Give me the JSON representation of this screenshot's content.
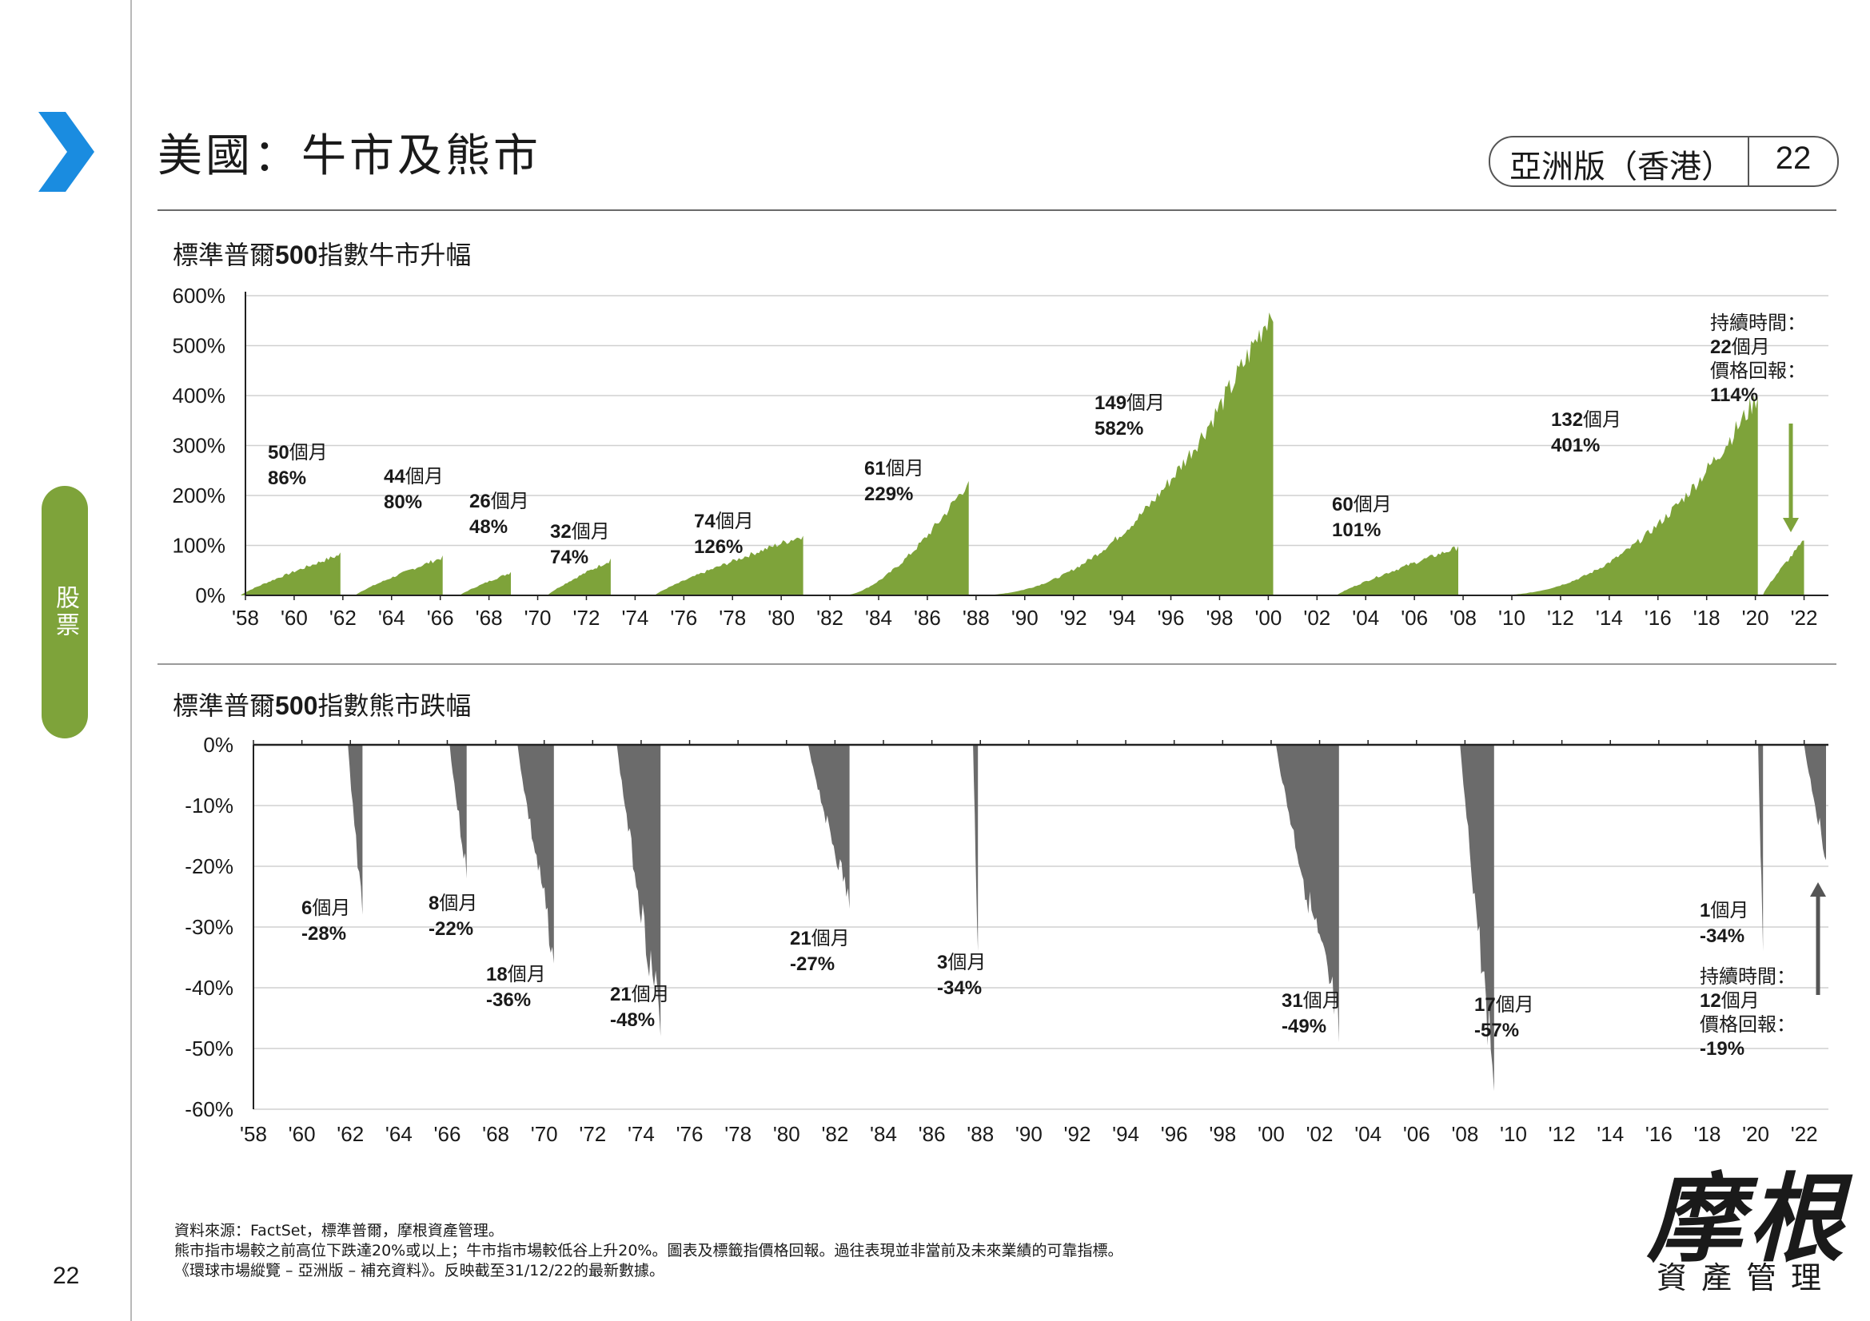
{
  "header": {
    "title": "美國：牛市及熊市",
    "edition": "亞洲版（香港）",
    "page_number": "22"
  },
  "side_tab": {
    "label": "股票"
  },
  "colors": {
    "bull": "#7ea33a",
    "bear": "#6b6b6b",
    "accent_blue": "#1a8ce0",
    "tab": "#7ea33a"
  },
  "bull_chart_title_pre": "標準普爾",
  "bull_chart_title_bold": "500",
  "bull_chart_title_post": "指數牛市升幅",
  "bear_chart_title_pre": "標準普爾",
  "bear_chart_title_bold": "500",
  "bear_chart_title_post": "指數熊市跌幅",
  "chart_data": [
    {
      "type": "area",
      "title": "標準普爾500指數牛市升幅",
      "x_tick_labels": [
        "'58",
        "'60",
        "'62",
        "'64",
        "'66",
        "'68",
        "'70",
        "'72",
        "'74",
        "'76",
        "'78",
        "'80",
        "'82",
        "'84",
        "'86",
        "'88",
        "'90",
        "'92",
        "'94",
        "'96",
        "'98",
        "'00",
        "'02",
        "'04",
        "'06",
        "'08",
        "'10",
        "'12",
        "'14",
        "'16",
        "'18",
        "'20",
        "'22"
      ],
      "xlim": [
        1958,
        2023
      ],
      "y_tick_labels": [
        "600%",
        "500%",
        "400%",
        "300%",
        "200%",
        "100%",
        "0%"
      ],
      "ylim": [
        0,
        600
      ],
      "grid": true,
      "series_color": "#7ea33a",
      "markets": [
        {
          "start": 1957.8,
          "end": 1961.9,
          "months": "50",
          "return": 86,
          "label_months": "50",
          "label_unit": "個月",
          "label_return": "86%"
        },
        {
          "start": 1962.5,
          "end": 1966.1,
          "months": "44",
          "return": 80,
          "label_months": "44",
          "label_unit": "個月",
          "label_return": "80%"
        },
        {
          "start": 1966.8,
          "end": 1968.9,
          "months": "26",
          "return": 48,
          "label_months": "26",
          "label_unit": "個月",
          "label_return": "48%"
        },
        {
          "start": 1970.4,
          "end": 1973.0,
          "months": "32",
          "return": 74,
          "label_months": "32",
          "label_unit": "個月",
          "label_return": "74%"
        },
        {
          "start": 1974.8,
          "end": 1980.9,
          "months": "74",
          "return": 126,
          "label_months": "74",
          "label_unit": "個月",
          "label_return": "126%"
        },
        {
          "start": 1982.6,
          "end": 1987.7,
          "months": "61",
          "return": 229,
          "label_months": "61",
          "label_unit": "個月",
          "label_return": "229%"
        },
        {
          "start": 1987.9,
          "end": 2000.2,
          "months": "149",
          "return": 582,
          "label_months": "149",
          "label_unit": "個月",
          "label_return": "582%"
        },
        {
          "start": 2002.8,
          "end": 2007.8,
          "months": "60",
          "return": 101,
          "label_months": "60",
          "label_unit": "個月",
          "label_return": "101%"
        },
        {
          "start": 2009.2,
          "end": 2020.1,
          "months": "132",
          "return": 401,
          "label_months": "132",
          "label_unit": "個月",
          "label_return": "401%"
        },
        {
          "start": 2020.3,
          "end": 2022.0,
          "months": "22",
          "return": 114,
          "label_months": "22",
          "label_unit": "個月",
          "label_return": "114%"
        }
      ],
      "current_annotation": {
        "line1": "持續時間：",
        "line2_bold": "22",
        "line2_unit": "個月",
        "line3": "價格回報：",
        "line4": "114%"
      }
    },
    {
      "type": "area",
      "title": "標準普爾500指數熊市跌幅",
      "x_tick_labels": [
        "'58",
        "'60",
        "'62",
        "'64",
        "'66",
        "'68",
        "'70",
        "'72",
        "'74",
        "'76",
        "'78",
        "'80",
        "'82",
        "'84",
        "'86",
        "'88",
        "'90",
        "'92",
        "'94",
        "'96",
        "'98",
        "'00",
        "'02",
        "'04",
        "'06",
        "'08",
        "'10",
        "'12",
        "'14",
        "'16",
        "'18",
        "'20",
        "'22"
      ],
      "xlim": [
        1958,
        2023
      ],
      "y_tick_labels": [
        "0%",
        "-10%",
        "-20%",
        "-30%",
        "-40%",
        "-50%",
        "-60%"
      ],
      "ylim": [
        -60,
        0
      ],
      "grid": true,
      "series_color": "#6b6b6b",
      "markets": [
        {
          "start": 1961.9,
          "end": 1962.5,
          "months": "6",
          "return": -28,
          "label_months": "6",
          "label_unit": "個月",
          "label_return": "-28%"
        },
        {
          "start": 1966.1,
          "end": 1966.8,
          "months": "8",
          "return": -22,
          "label_months": "8",
          "label_unit": "個月",
          "label_return": "-22%"
        },
        {
          "start": 1968.9,
          "end": 1970.4,
          "months": "18",
          "return": -36,
          "label_months": "18",
          "label_unit": "個月",
          "label_return": "-36%"
        },
        {
          "start": 1973.0,
          "end": 1974.8,
          "months": "21",
          "return": -48,
          "label_months": "21",
          "label_unit": "個月",
          "label_return": "-48%"
        },
        {
          "start": 1980.9,
          "end": 1982.6,
          "months": "21",
          "return": -27,
          "label_months": "21",
          "label_unit": "個月",
          "label_return": "-27%"
        },
        {
          "start": 1987.7,
          "end": 1987.9,
          "months": "3",
          "return": -34,
          "label_months": "3",
          "label_unit": "個月",
          "label_return": "-34%"
        },
        {
          "start": 2000.2,
          "end": 2002.8,
          "months": "31",
          "return": -49,
          "label_months": "31",
          "label_unit": "個月",
          "label_return": "-49%"
        },
        {
          "start": 2007.8,
          "end": 2009.2,
          "months": "17",
          "return": -57,
          "label_months": "17",
          "label_unit": "個月",
          "label_return": "-57%"
        },
        {
          "start": 2020.1,
          "end": 2020.3,
          "months": "1",
          "return": -34,
          "label_months": "1",
          "label_unit": "個月",
          "label_return": "-34%"
        },
        {
          "start": 2022.0,
          "end": 2022.9,
          "months": "12",
          "return": -19,
          "label_months": "",
          "label_unit": "",
          "label_return": ""
        }
      ],
      "current_annotation": {
        "line1": "持續時間：",
        "line2_bold": "12",
        "line2_unit": "個月",
        "line3": "價格回報：",
        "line4": "-19%"
      }
    }
  ],
  "footer": {
    "source_line1": "資料來源：FactSet，標準普爾，摩根資產管理。",
    "source_line2": "熊市指市場較之前高位下跌達20%或以上；牛市指市場較低谷上升20%。圖表及標籤指價格回報。過往表現並非當前及未來業績的可靠指標。",
    "source_line3": "《環球市場縱覽 – 亞洲版 – 補充資料》。反映截至31/12/22的最新數據。",
    "page_number": "22"
  },
  "logo": {
    "main": "摩根",
    "sub": "資產管理"
  }
}
